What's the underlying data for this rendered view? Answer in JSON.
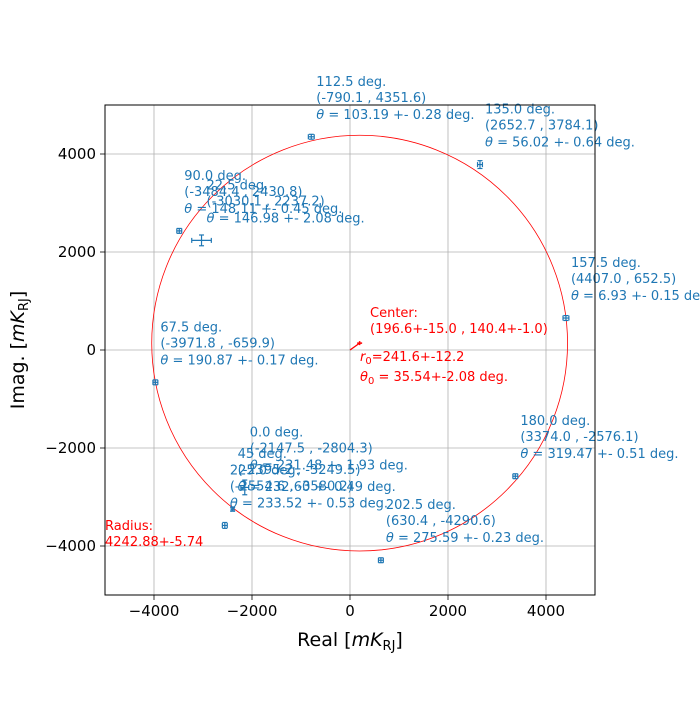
{
  "chart_data": {
    "type": "scatter",
    "xlabel_prefix": "Real [",
    "ylabel_prefix": "Imag. [",
    "unit_main": "mK",
    "unit_sub": "RJ",
    "label_suffix": "]",
    "xlim": [
      -5000,
      5000
    ],
    "ylim": [
      -5000,
      5000
    ],
    "xticks": [
      -4000,
      -2000,
      0,
      2000,
      4000
    ],
    "yticks": [
      -4000,
      -2000,
      0,
      2000,
      4000
    ],
    "grid": true,
    "point_color": "#1f77b4",
    "fit_color": "#ff0000",
    "points": [
      {
        "angle": "0.0 deg.",
        "x": -2147.5,
        "y": -2804.3,
        "coord": "(-2147.5 , -2804.3)",
        "theta": "231.48",
        "err": "1.93",
        "xerr": 80,
        "yerr": 150
      },
      {
        "angle": "22.5 deg.",
        "x": -3030.1,
        "y": 2237.2,
        "coord": "(-3030.1 , 2237.2)",
        "theta": "146.98",
        "err": "2.08",
        "xerr": 200,
        "yerr": 110
      },
      {
        "angle": "45 deg.",
        "x": -2395.2,
        "y": -3249.5,
        "coord": "(-2395.2 , -3249.5)",
        "theta": "232.60",
        "err": "0.49",
        "xerr": 30,
        "yerr": 40
      },
      {
        "angle": "67.5 deg.",
        "x": -3971.8,
        "y": -659.9,
        "coord": "(-3971.8 , -659.9)",
        "theta": "190.87",
        "err": "0.17",
        "xerr": 50,
        "yerr": 50
      },
      {
        "angle": "90.0 deg.",
        "x": -3484.4,
        "y": 2430.8,
        "coord": "(-3484.4 , 2430.8)",
        "theta": "148.11",
        "err": "0.45",
        "xerr": 50,
        "yerr": 50
      },
      {
        "angle": "112.5 deg.",
        "x": -790.1,
        "y": 4351.6,
        "coord": "(-790.1 , 4351.6)",
        "theta": "103.19",
        "err": "0.28",
        "xerr": 60,
        "yerr": 50
      },
      {
        "angle": "135.0 deg.",
        "x": 2652.7,
        "y": 3784.1,
        "coord": "(2652.7 , 3784.1)",
        "theta": "56.02",
        "err": "0.64",
        "xerr": 50,
        "yerr": 80
      },
      {
        "angle": "157.5 deg.",
        "x": 4407.0,
        "y": 652.5,
        "coord": "(4407.0 , 652.5)",
        "theta": "6.93",
        "err": "0.15",
        "xerr": 60,
        "yerr": 50
      },
      {
        "angle": "180.0 deg.",
        "x": 3374.0,
        "y": -2576.1,
        "coord": "(3374.0 , -2576.1)",
        "theta": "319.47",
        "err": "0.51",
        "xerr": 50,
        "yerr": 50
      },
      {
        "angle": "202.5 deg.",
        "x": 630.4,
        "y": -4290.6,
        "coord": "(630.4 , -4290.6)",
        "theta": "275.59",
        "err": "0.23",
        "xerr": 50,
        "yerr": 50
      },
      {
        "angle": "225.0 deg.",
        "x": -2554.6,
        "y": -3580.2,
        "coord": "(-2554.6 , -3580.2)",
        "theta": "233.52",
        "err": "0.53",
        "xerr": 50,
        "yerr": 60
      }
    ],
    "fit": {
      "center_x": 196.6,
      "center_y": 140.4,
      "radius": 4242.88,
      "center_label": "Center:",
      "center_value": "(196.6+-15.0 , 140.4+-1.0)",
      "r0_text": "=241.6+-12.2",
      "theta0_text": " = 35.54+-2.08 deg.",
      "radius_label": "Radius:",
      "radius_value": "4242.88+-5.74"
    }
  }
}
